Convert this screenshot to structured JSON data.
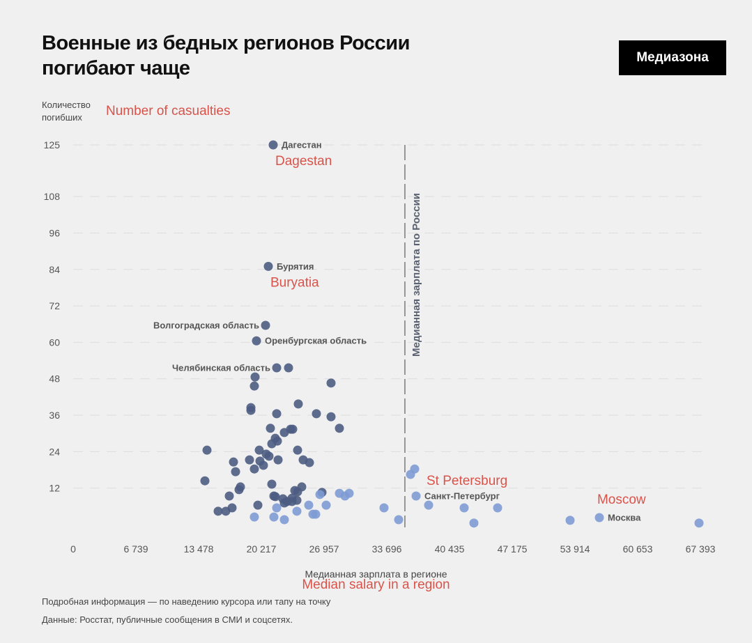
{
  "header": {
    "title": "Военные из бедных регионов России погибают чаще",
    "logo": "Медиазона"
  },
  "footer": {
    "hint": "Подробная информация — по наведению курсора или тапу на точку",
    "source": "Данные: Росстат, публичные сообщения в СМИ и соцсетях."
  },
  "colors": {
    "dark": "#4d5c82",
    "light": "#7e9bd4",
    "annotation": "#d9534a",
    "background": "#f0f0f0"
  },
  "chart_data": {
    "type": "scatter",
    "title": "Военные из бедных регионов России погибают чаще",
    "ylabel": "Количество погибших",
    "ylabel_en": "Number of casualties",
    "xlabel": "Медианная зарплата в регионе",
    "xlabel_en": "Median salary in a region",
    "xlim": [
      0,
      67393
    ],
    "ylim": [
      0,
      125
    ],
    "x_ticks": [
      "0",
      "6 739",
      "13 478",
      "20 217",
      "26 957",
      "33 696",
      "40 435",
      "47 175",
      "53 914",
      "60 653",
      "67 393"
    ],
    "x_tick_values": [
      0,
      6739,
      13478,
      20217,
      26957,
      33696,
      40435,
      47175,
      53914,
      60653,
      67393
    ],
    "y_ticks": [
      "125",
      "108",
      "96",
      "84",
      "72",
      "60",
      "48",
      "36",
      "24",
      "12"
    ],
    "y_tick_values": [
      125,
      108,
      96,
      84,
      72,
      60,
      48,
      36,
      24,
      12
    ],
    "grid": true,
    "reference_line": {
      "x": 35640,
      "label": "Медианная зарплата по России"
    },
    "points": [
      {
        "x": 21490,
        "y": 125,
        "g": "dark",
        "label": "Дагестан",
        "ann": "Dagestan"
      },
      {
        "x": 20966,
        "y": 85,
        "g": "dark",
        "label": "Бурятия",
        "ann": "Buryatia"
      },
      {
        "x": 20667,
        "y": 65.6,
        "g": "dark",
        "label": "Волгоградская область",
        "side": "left"
      },
      {
        "x": 19693,
        "y": 60.5,
        "g": "dark",
        "label": "Оренбургская область"
      },
      {
        "x": 21865,
        "y": 51.6,
        "g": "dark",
        "label": "Челябинская область",
        "side": "left"
      },
      {
        "x": 23138,
        "y": 51.6,
        "g": "dark"
      },
      {
        "x": 19543,
        "y": 48.6,
        "g": "dark"
      },
      {
        "x": 19468,
        "y": 45.6,
        "g": "dark"
      },
      {
        "x": 27706,
        "y": 46.6,
        "g": "dark"
      },
      {
        "x": 24187,
        "y": 39.7,
        "g": "dark"
      },
      {
        "x": 19094,
        "y": 38.5,
        "g": "dark"
      },
      {
        "x": 19094,
        "y": 37.6,
        "g": "dark"
      },
      {
        "x": 21865,
        "y": 36.5,
        "g": "dark"
      },
      {
        "x": 26133,
        "y": 36.5,
        "g": "dark"
      },
      {
        "x": 27706,
        "y": 35.5,
        "g": "dark"
      },
      {
        "x": 28604,
        "y": 31.7,
        "g": "dark"
      },
      {
        "x": 21191,
        "y": 31.7,
        "g": "dark"
      },
      {
        "x": 23362,
        "y": 31.4,
        "g": "dark"
      },
      {
        "x": 23587,
        "y": 31.4,
        "g": "dark"
      },
      {
        "x": 22688,
        "y": 30.3,
        "g": "dark"
      },
      {
        "x": 21715,
        "y": 28.4,
        "g": "dark"
      },
      {
        "x": 21940,
        "y": 27.5,
        "g": "dark"
      },
      {
        "x": 21340,
        "y": 26.6,
        "g": "dark"
      },
      {
        "x": 14377,
        "y": 24.5,
        "g": "dark"
      },
      {
        "x": 19993,
        "y": 24.5,
        "g": "dark"
      },
      {
        "x": 24112,
        "y": 24.5,
        "g": "dark"
      },
      {
        "x": 20742,
        "y": 23.2,
        "g": "dark"
      },
      {
        "x": 21040,
        "y": 22.5,
        "g": "dark"
      },
      {
        "x": 18944,
        "y": 21.3,
        "g": "dark"
      },
      {
        "x": 22015,
        "y": 21.3,
        "g": "dark"
      },
      {
        "x": 24711,
        "y": 21.3,
        "g": "dark"
      },
      {
        "x": 25385,
        "y": 20.4,
        "g": "dark"
      },
      {
        "x": 17222,
        "y": 20.6,
        "g": "dark"
      },
      {
        "x": 20068,
        "y": 20.9,
        "g": "dark"
      },
      {
        "x": 20442,
        "y": 19.5,
        "g": "dark"
      },
      {
        "x": 19468,
        "y": 18.3,
        "g": "dark"
      },
      {
        "x": 17447,
        "y": 17.4,
        "g": "dark"
      },
      {
        "x": 14152,
        "y": 14.4,
        "g": "dark"
      },
      {
        "x": 21340,
        "y": 13.3,
        "g": "dark"
      },
      {
        "x": 17971,
        "y": 12.4,
        "g": "dark"
      },
      {
        "x": 17821,
        "y": 11.5,
        "g": "dark"
      },
      {
        "x": 24561,
        "y": 12.4,
        "g": "dark"
      },
      {
        "x": 16773,
        "y": 9.4,
        "g": "dark"
      },
      {
        "x": 21565,
        "y": 9.4,
        "g": "dark"
      },
      {
        "x": 21715,
        "y": 9.2,
        "g": "dark"
      },
      {
        "x": 23811,
        "y": 11.2,
        "g": "dark"
      },
      {
        "x": 24112,
        "y": 10.8,
        "g": "dark"
      },
      {
        "x": 26733,
        "y": 10.6,
        "g": "dark"
      },
      {
        "x": 22538,
        "y": 8.5,
        "g": "dark"
      },
      {
        "x": 23512,
        "y": 7.6,
        "g": "dark"
      },
      {
        "x": 22987,
        "y": 7.6,
        "g": "dark"
      },
      {
        "x": 19843,
        "y": 6.4,
        "g": "dark"
      },
      {
        "x": 17073,
        "y": 5.5,
        "g": "dark"
      },
      {
        "x": 15575,
        "y": 4.4,
        "g": "dark"
      },
      {
        "x": 16399,
        "y": 4.4,
        "g": "dark"
      },
      {
        "x": 22688,
        "y": 7.1,
        "g": "dark"
      },
      {
        "x": 24037,
        "y": 8.0,
        "g": "dark"
      },
      {
        "x": 23512,
        "y": 8.7,
        "g": "dark"
      },
      {
        "x": 26508,
        "y": 9.9,
        "g": "light"
      },
      {
        "x": 28604,
        "y": 10.3,
        "g": "light"
      },
      {
        "x": 29203,
        "y": 9.4,
        "g": "light"
      },
      {
        "x": 29652,
        "y": 10.3,
        "g": "light"
      },
      {
        "x": 25310,
        "y": 6.4,
        "g": "light"
      },
      {
        "x": 27182,
        "y": 6.4,
        "g": "light"
      },
      {
        "x": 21865,
        "y": 5.5,
        "g": "light"
      },
      {
        "x": 24037,
        "y": 4.4,
        "g": "light"
      },
      {
        "x": 25759,
        "y": 3.4,
        "g": "light"
      },
      {
        "x": 26058,
        "y": 3.4,
        "g": "light"
      },
      {
        "x": 19468,
        "y": 2.5,
        "g": "light"
      },
      {
        "x": 21565,
        "y": 2.5,
        "g": "light"
      },
      {
        "x": 22688,
        "y": 1.6,
        "g": "light"
      },
      {
        "x": 33396,
        "y": 5.5,
        "g": "light"
      },
      {
        "x": 34969,
        "y": 1.6,
        "g": "light"
      },
      {
        "x": 36242,
        "y": 16.5,
        "g": "light"
      },
      {
        "x": 36691,
        "y": 18.3,
        "g": "light"
      },
      {
        "x": 36841,
        "y": 9.4,
        "g": "light",
        "label": "Санкт-Петербург",
        "ann": "St Petersburg"
      },
      {
        "x": 38189,
        "y": 6.4,
        "g": "light"
      },
      {
        "x": 42008,
        "y": 5.5,
        "g": "light"
      },
      {
        "x": 45602,
        "y": 5.5,
        "g": "light"
      },
      {
        "x": 43055,
        "y": 0.5,
        "g": "light"
      },
      {
        "x": 53389,
        "y": 1.4,
        "g": "light"
      },
      {
        "x": 56534,
        "y": 2.3,
        "g": "light",
        "label": "Москва",
        "ann": "Moscow"
      },
      {
        "x": 67243,
        "y": 0.5,
        "g": "light"
      }
    ]
  }
}
